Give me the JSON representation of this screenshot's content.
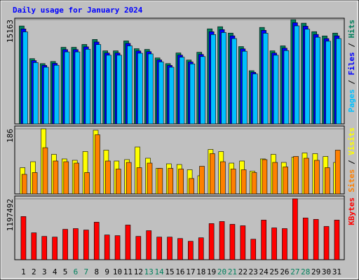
{
  "chart_data": [
    {
      "type": "bar",
      "title": "Daily usage for January 2024",
      "title_color": "#0000ff",
      "ylim": [
        0,
        15163
      ],
      "yticks": [
        15163
      ],
      "series": [
        {
          "name": "Hits",
          "color": "#00805c",
          "values": [
            14235,
            9490,
            8768,
            9077,
            11140,
            11140,
            11553,
            12275,
            10624,
            10624,
            12069,
            10934,
            10831,
            9593,
            8768,
            10315,
            9284,
            10418,
            13822,
            14132,
            13203,
            11243,
            7736,
            14028,
            10624,
            11347,
            15163,
            14647,
            13410,
            12791,
            13203
          ]
        },
        {
          "name": "Files",
          "color": "#0000ff",
          "values": [
            13808,
            9205,
            8505,
            8805,
            10806,
            10806,
            11206,
            11907,
            10305,
            10305,
            11707,
            10606,
            10506,
            9305,
            8505,
            10006,
            9005,
            10105,
            13407,
            13708,
            12807,
            10906,
            7504,
            13607,
            10305,
            11007,
            14708,
            14208,
            13008,
            12407,
            12807
          ]
        },
        {
          "name": "Pages",
          "color": "#00c0ff",
          "values": [
            13381,
            8921,
            8242,
            8532,
            10472,
            10472,
            10860,
            11539,
            9987,
            9987,
            11345,
            10278,
            10181,
            9017,
            8242,
            9696,
            8727,
            9793,
            12993,
            13284,
            12411,
            10568,
            7272,
            13186,
            9987,
            10666,
            14253,
            13768,
            12605,
            12024,
            12411
          ]
        }
      ]
    },
    {
      "type": "bar",
      "ylim": [
        0,
        186
      ],
      "yticks": [
        186
      ],
      "series": [
        {
          "name": "Visits",
          "color": "#ffff00",
          "values": [
            75,
            92,
            186,
            113,
            100,
            96,
            121,
            182,
            125,
            94,
            98,
            134,
            102,
            73,
            86,
            84,
            69,
            52,
            127,
            121,
            88,
            94,
            65,
            100,
            113,
            90,
            105,
            117,
            115,
            107,
            90
          ]
        },
        {
          "name": "Sites",
          "color": "#ff8000",
          "values": [
            56,
            61,
            132,
            94,
            92,
            88,
            61,
            169,
            94,
            71,
            90,
            75,
            88,
            73,
            73,
            71,
            44,
            79,
            115,
            92,
            71,
            69,
            61,
            98,
            90,
            77,
            107,
            102,
            96,
            75,
            125
          ]
        }
      ]
    },
    {
      "type": "bar",
      "ylim": [
        0,
        1197492
      ],
      "yticks": [
        1197492
      ],
      "categories": [
        "1",
        "2",
        "3",
        "4",
        "5",
        "6",
        "7",
        "8",
        "9",
        "10",
        "11",
        "12",
        "13",
        "14",
        "15",
        "16",
        "17",
        "18",
        "19",
        "20",
        "21",
        "22",
        "23",
        "24",
        "25",
        "26",
        "27",
        "28",
        "29",
        "30",
        "31"
      ],
      "weekend_indices": [
        5,
        6,
        12,
        13,
        19,
        20,
        26,
        27
      ],
      "weekend_color": "#00805c",
      "series": [
        {
          "name": "KBytes",
          "color": "#ff0000",
          "values": [
            849000,
            529000,
            459000,
            445000,
            598000,
            612000,
            584000,
            738000,
            487000,
            473000,
            682000,
            459000,
            571000,
            445000,
            445000,
            417000,
            362000,
            431000,
            710000,
            751000,
            696000,
            668000,
            403000,
            779000,
            626000,
            612000,
            1197492,
            821000,
            793000,
            654000,
            779000
          ]
        }
      ]
    }
  ]
}
